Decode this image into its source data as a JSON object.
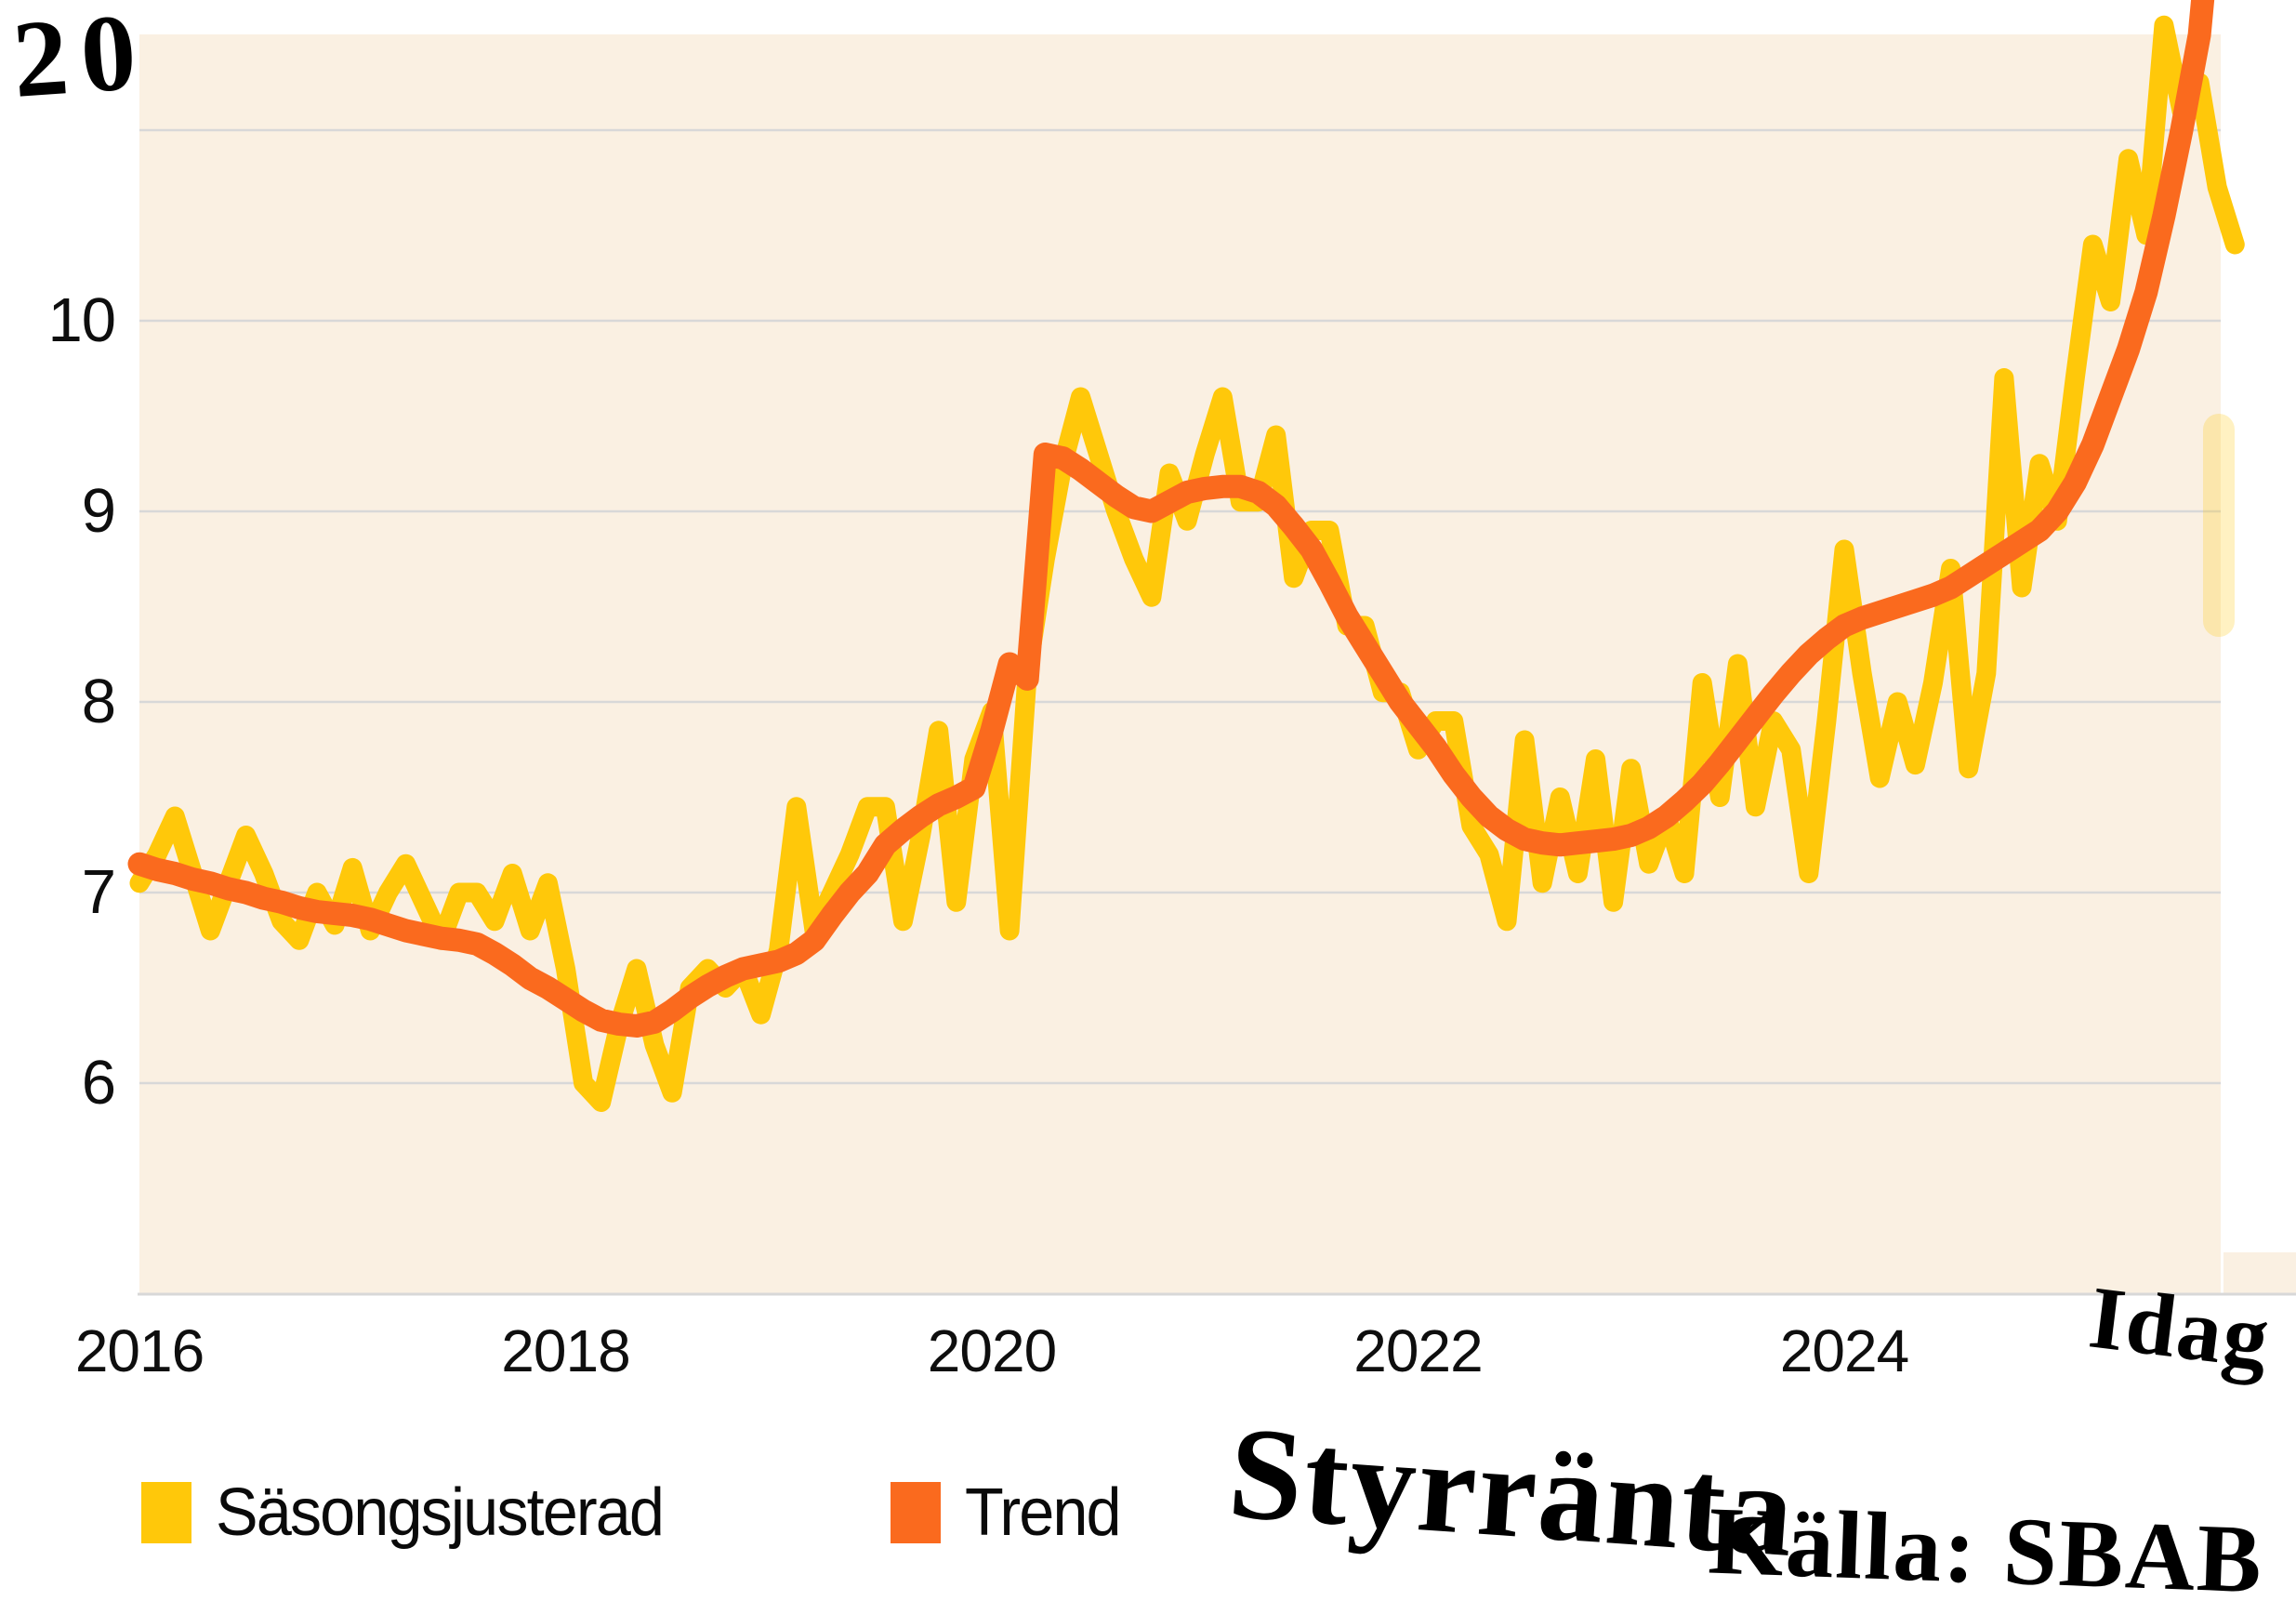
{
  "annotations": {
    "top_left_value": "20",
    "today_label": "Idag",
    "title": "Styrränta",
    "source": "Källa: SBAB"
  },
  "legend": {
    "items": [
      {
        "label": "Säsongsjusterad",
        "color": "#FFC80A"
      },
      {
        "label": "Trend",
        "color": "#FA6A1E"
      }
    ]
  },
  "colors": {
    "plot_background": "#FAF0E2",
    "gridline": "#D8D8D8",
    "axis_line": "#D8D8D8",
    "seasonal_line": "#FFC80A",
    "trend_line": "#FA6A1E",
    "text": "#0E0E0E",
    "ghost_yellow": "rgba(255,200,10,0.25)"
  },
  "chart_data": {
    "type": "line",
    "title": "Styrränta",
    "source": "Källa: SBAB",
    "frequency": "monthly",
    "start": "2016-01",
    "x_ticks": [
      {
        "label": "2016",
        "year": 2016
      },
      {
        "label": "2018",
        "year": 2018
      },
      {
        "label": "2020",
        "year": 2020
      },
      {
        "label": "2022",
        "year": 2022
      },
      {
        "label": "2024",
        "year": 2024
      }
    ],
    "x_annotation": {
      "label": "Idag",
      "position_year": 2025.5
    },
    "y_ticks": [
      6,
      7,
      8,
      9,
      10
    ],
    "y_gridlines": [
      6,
      7,
      8,
      9,
      10,
      11
    ],
    "ylim_visible": [
      4.9,
      11.5
    ],
    "off_scale_note": "20",
    "legend_position": "bottom-left",
    "grid": true,
    "series": [
      {
        "name": "Säsongsjusterad",
        "color": "#FFC80A",
        "values": [
          7.05,
          7.2,
          7.4,
          7.1,
          6.8,
          7.05,
          7.3,
          7.1,
          6.85,
          6.75,
          7.0,
          6.83,
          7.13,
          6.8,
          7.0,
          7.15,
          6.95,
          6.75,
          7.0,
          7.0,
          6.85,
          7.1,
          6.8,
          7.05,
          6.6,
          6.0,
          5.9,
          6.3,
          6.6,
          6.2,
          5.95,
          6.5,
          6.6,
          6.5,
          6.6,
          6.36,
          6.7,
          7.45,
          6.8,
          7.0,
          7.2,
          7.45,
          7.45,
          6.85,
          7.3,
          7.85,
          6.95,
          7.7,
          7.95,
          6.8,
          8.15,
          8.75,
          9.25,
          9.6,
          9.3,
          9.0,
          8.75,
          8.55,
          9.2,
          8.95,
          9.3,
          9.6,
          9.05,
          9.05,
          9.4,
          8.65,
          8.9,
          8.9,
          8.4,
          8.4,
          8.05,
          8.05,
          7.75,
          7.9,
          7.9,
          7.35,
          7.2,
          6.85,
          7.8,
          7.05,
          7.5,
          7.1,
          7.7,
          6.95,
          7.65,
          7.15,
          7.4,
          7.1,
          8.1,
          7.5,
          8.2,
          7.45,
          7.9,
          7.75,
          7.1,
          7.9,
          8.8,
          8.15,
          7.6,
          8.0,
          7.67,
          8.1,
          8.7,
          7.65,
          8.15,
          9.7,
          8.6,
          9.25,
          8.95,
          9.7,
          10.4,
          10.1,
          10.85,
          10.45,
          11.55,
          11.1,
          11.25,
          10.7,
          10.4
        ]
      },
      {
        "name": "Trend",
        "color": "#FA6A1E",
        "values": [
          7.15,
          7.12,
          7.1,
          7.07,
          7.05,
          7.02,
          7.0,
          6.97,
          6.95,
          6.92,
          6.9,
          6.89,
          6.88,
          6.86,
          6.83,
          6.8,
          6.78,
          6.76,
          6.75,
          6.73,
          6.68,
          6.62,
          6.55,
          6.5,
          6.44,
          6.38,
          6.33,
          6.31,
          6.3,
          6.32,
          6.38,
          6.45,
          6.51,
          6.56,
          6.6,
          6.62,
          6.64,
          6.68,
          6.75,
          6.88,
          7.0,
          7.1,
          7.25,
          7.33,
          7.4,
          7.46,
          7.5,
          7.55,
          7.85,
          8.2,
          8.12,
          9.3,
          9.28,
          9.22,
          9.15,
          9.08,
          9.02,
          9.0,
          9.05,
          9.1,
          9.12,
          9.13,
          9.13,
          9.1,
          9.03,
          8.92,
          8.8,
          8.63,
          8.45,
          8.3,
          8.15,
          8.0,
          7.88,
          7.76,
          7.62,
          7.5,
          7.4,
          7.33,
          7.28,
          7.26,
          7.25,
          7.26,
          7.27,
          7.28,
          7.3,
          7.34,
          7.4,
          7.48,
          7.57,
          7.68,
          7.8,
          7.92,
          8.04,
          8.15,
          8.25,
          8.33,
          8.4,
          8.44,
          8.47,
          8.5,
          8.53,
          8.56,
          8.6,
          8.66,
          8.72,
          8.78,
          8.84,
          8.9,
          9.0,
          9.15,
          9.35,
          9.6,
          9.85,
          10.15,
          10.55,
          11.0,
          11.5,
          12.5
        ]
      }
    ]
  }
}
